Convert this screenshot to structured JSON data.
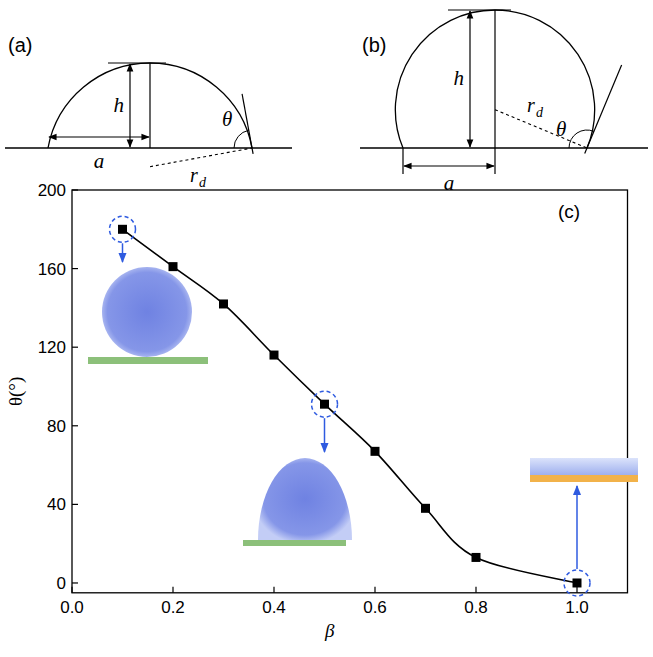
{
  "panels": [
    {
      "label": "(a)",
      "h": "h",
      "a": "a",
      "theta": "θ",
      "r": "r",
      "r_sub": "d"
    },
    {
      "label": "(b)",
      "h": "h",
      "a": "a",
      "theta": "θ",
      "r": "r",
      "r_sub": "d"
    }
  ],
  "chart_data": {
    "type": "line",
    "panel_label": "(c)",
    "x_label": "β",
    "y_label": "θ(°)",
    "x": [
      0.1,
      0.2,
      0.3,
      0.4,
      0.5,
      0.6,
      0.7,
      0.8,
      1.0
    ],
    "values": [
      180,
      161,
      142,
      116,
      91,
      67,
      38,
      13,
      0
    ],
    "color": "#000000",
    "marker": "square",
    "line_style": "solid",
    "xlim": [
      0,
      1.1
    ],
    "ylim": [
      -5,
      200
    ],
    "xticks": [
      {
        "value": 0,
        "label": "0.0"
      },
      0.2,
      0.4,
      0.6,
      0.8,
      {
        "value": 1,
        "label": "1.0"
      }
    ],
    "yticks": [
      0,
      40,
      80,
      120,
      160,
      200
    ],
    "grid": false
  }
}
